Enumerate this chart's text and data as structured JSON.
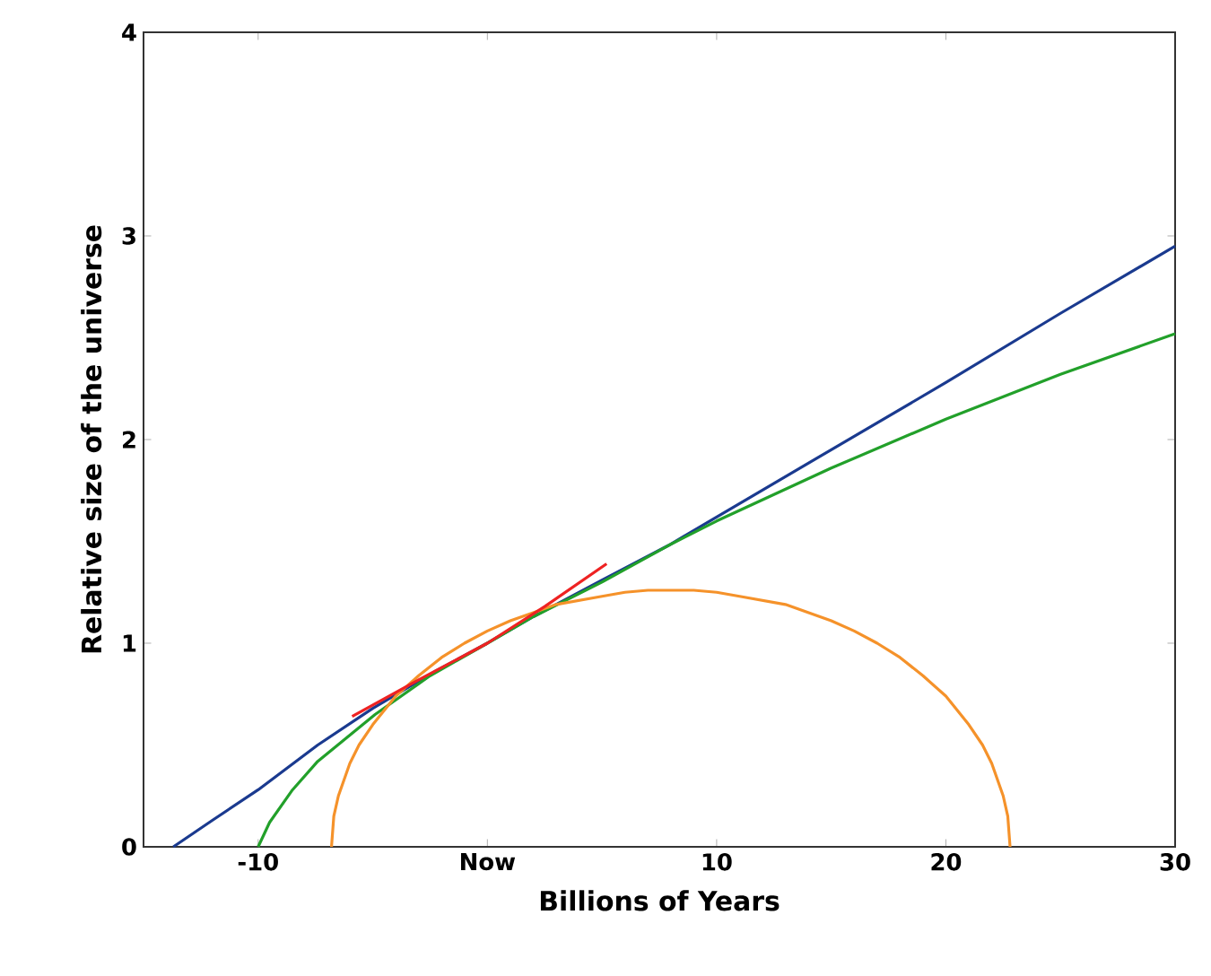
{
  "chart_data": {
    "type": "line",
    "xlabel": "Billions of Years",
    "ylabel": "Relative size of the universe",
    "xlim": [
      -15,
      30
    ],
    "ylim": [
      0,
      4
    ],
    "xticks": [
      -10,
      {
        "value": 0,
        "label": "Now"
      },
      10,
      20,
      30
    ],
    "yticks": [
      0,
      1,
      2,
      3,
      4
    ],
    "grid": false,
    "marker": "none",
    "line_style": "solid",
    "series": [
      {
        "color": "#1a3a8f",
        "x": [
          -13.7,
          -12,
          -10,
          -7.4,
          -5,
          -2.3,
          0,
          2,
          5,
          7.9,
          10,
          15,
          20,
          25,
          30
        ],
        "values": [
          0,
          0.13,
          0.28,
          0.5,
          0.68,
          0.86,
          1.0,
          1.13,
          1.31,
          1.48,
          1.62,
          1.95,
          2.28,
          2.62,
          2.95
        ]
      },
      {
        "color": "#22a02a",
        "x": [
          -10,
          -9.5,
          -8.5,
          -7.4,
          -4.9,
          -2.5,
          0,
          2,
          5,
          7.9,
          10,
          15,
          20,
          25,
          30
        ],
        "values": [
          0,
          0.12,
          0.28,
          0.42,
          0.65,
          0.84,
          1.0,
          1.13,
          1.3,
          1.48,
          1.6,
          1.86,
          2.1,
          2.32,
          2.52
        ]
      },
      {
        "color": "#f5922a",
        "x": [
          -6.8,
          -6.7,
          -6.5,
          -6,
          -5.6,
          -5,
          -4,
          -3,
          -2,
          -1,
          0,
          1,
          2,
          3,
          4,
          5,
          6,
          7,
          8,
          9,
          10,
          11,
          12,
          13,
          14,
          15,
          16,
          17,
          18,
          19,
          20,
          21,
          21.6,
          22,
          22.5,
          22.7,
          22.8
        ],
        "values": [
          0,
          0.15,
          0.25,
          0.41,
          0.5,
          0.6,
          0.74,
          0.84,
          0.93,
          1.0,
          1.06,
          1.11,
          1.15,
          1.19,
          1.21,
          1.23,
          1.25,
          1.26,
          1.26,
          1.26,
          1.25,
          1.23,
          1.21,
          1.19,
          1.15,
          1.11,
          1.06,
          1.0,
          0.93,
          0.84,
          0.74,
          0.6,
          0.5,
          0.41,
          0.25,
          0.15,
          0
        ]
      },
      {
        "color": "#ee2222",
        "x": [
          -5.9,
          -3,
          0,
          2.5,
          5.2
        ],
        "values": [
          0.64,
          0.82,
          1.0,
          1.18,
          1.39
        ]
      }
    ]
  }
}
